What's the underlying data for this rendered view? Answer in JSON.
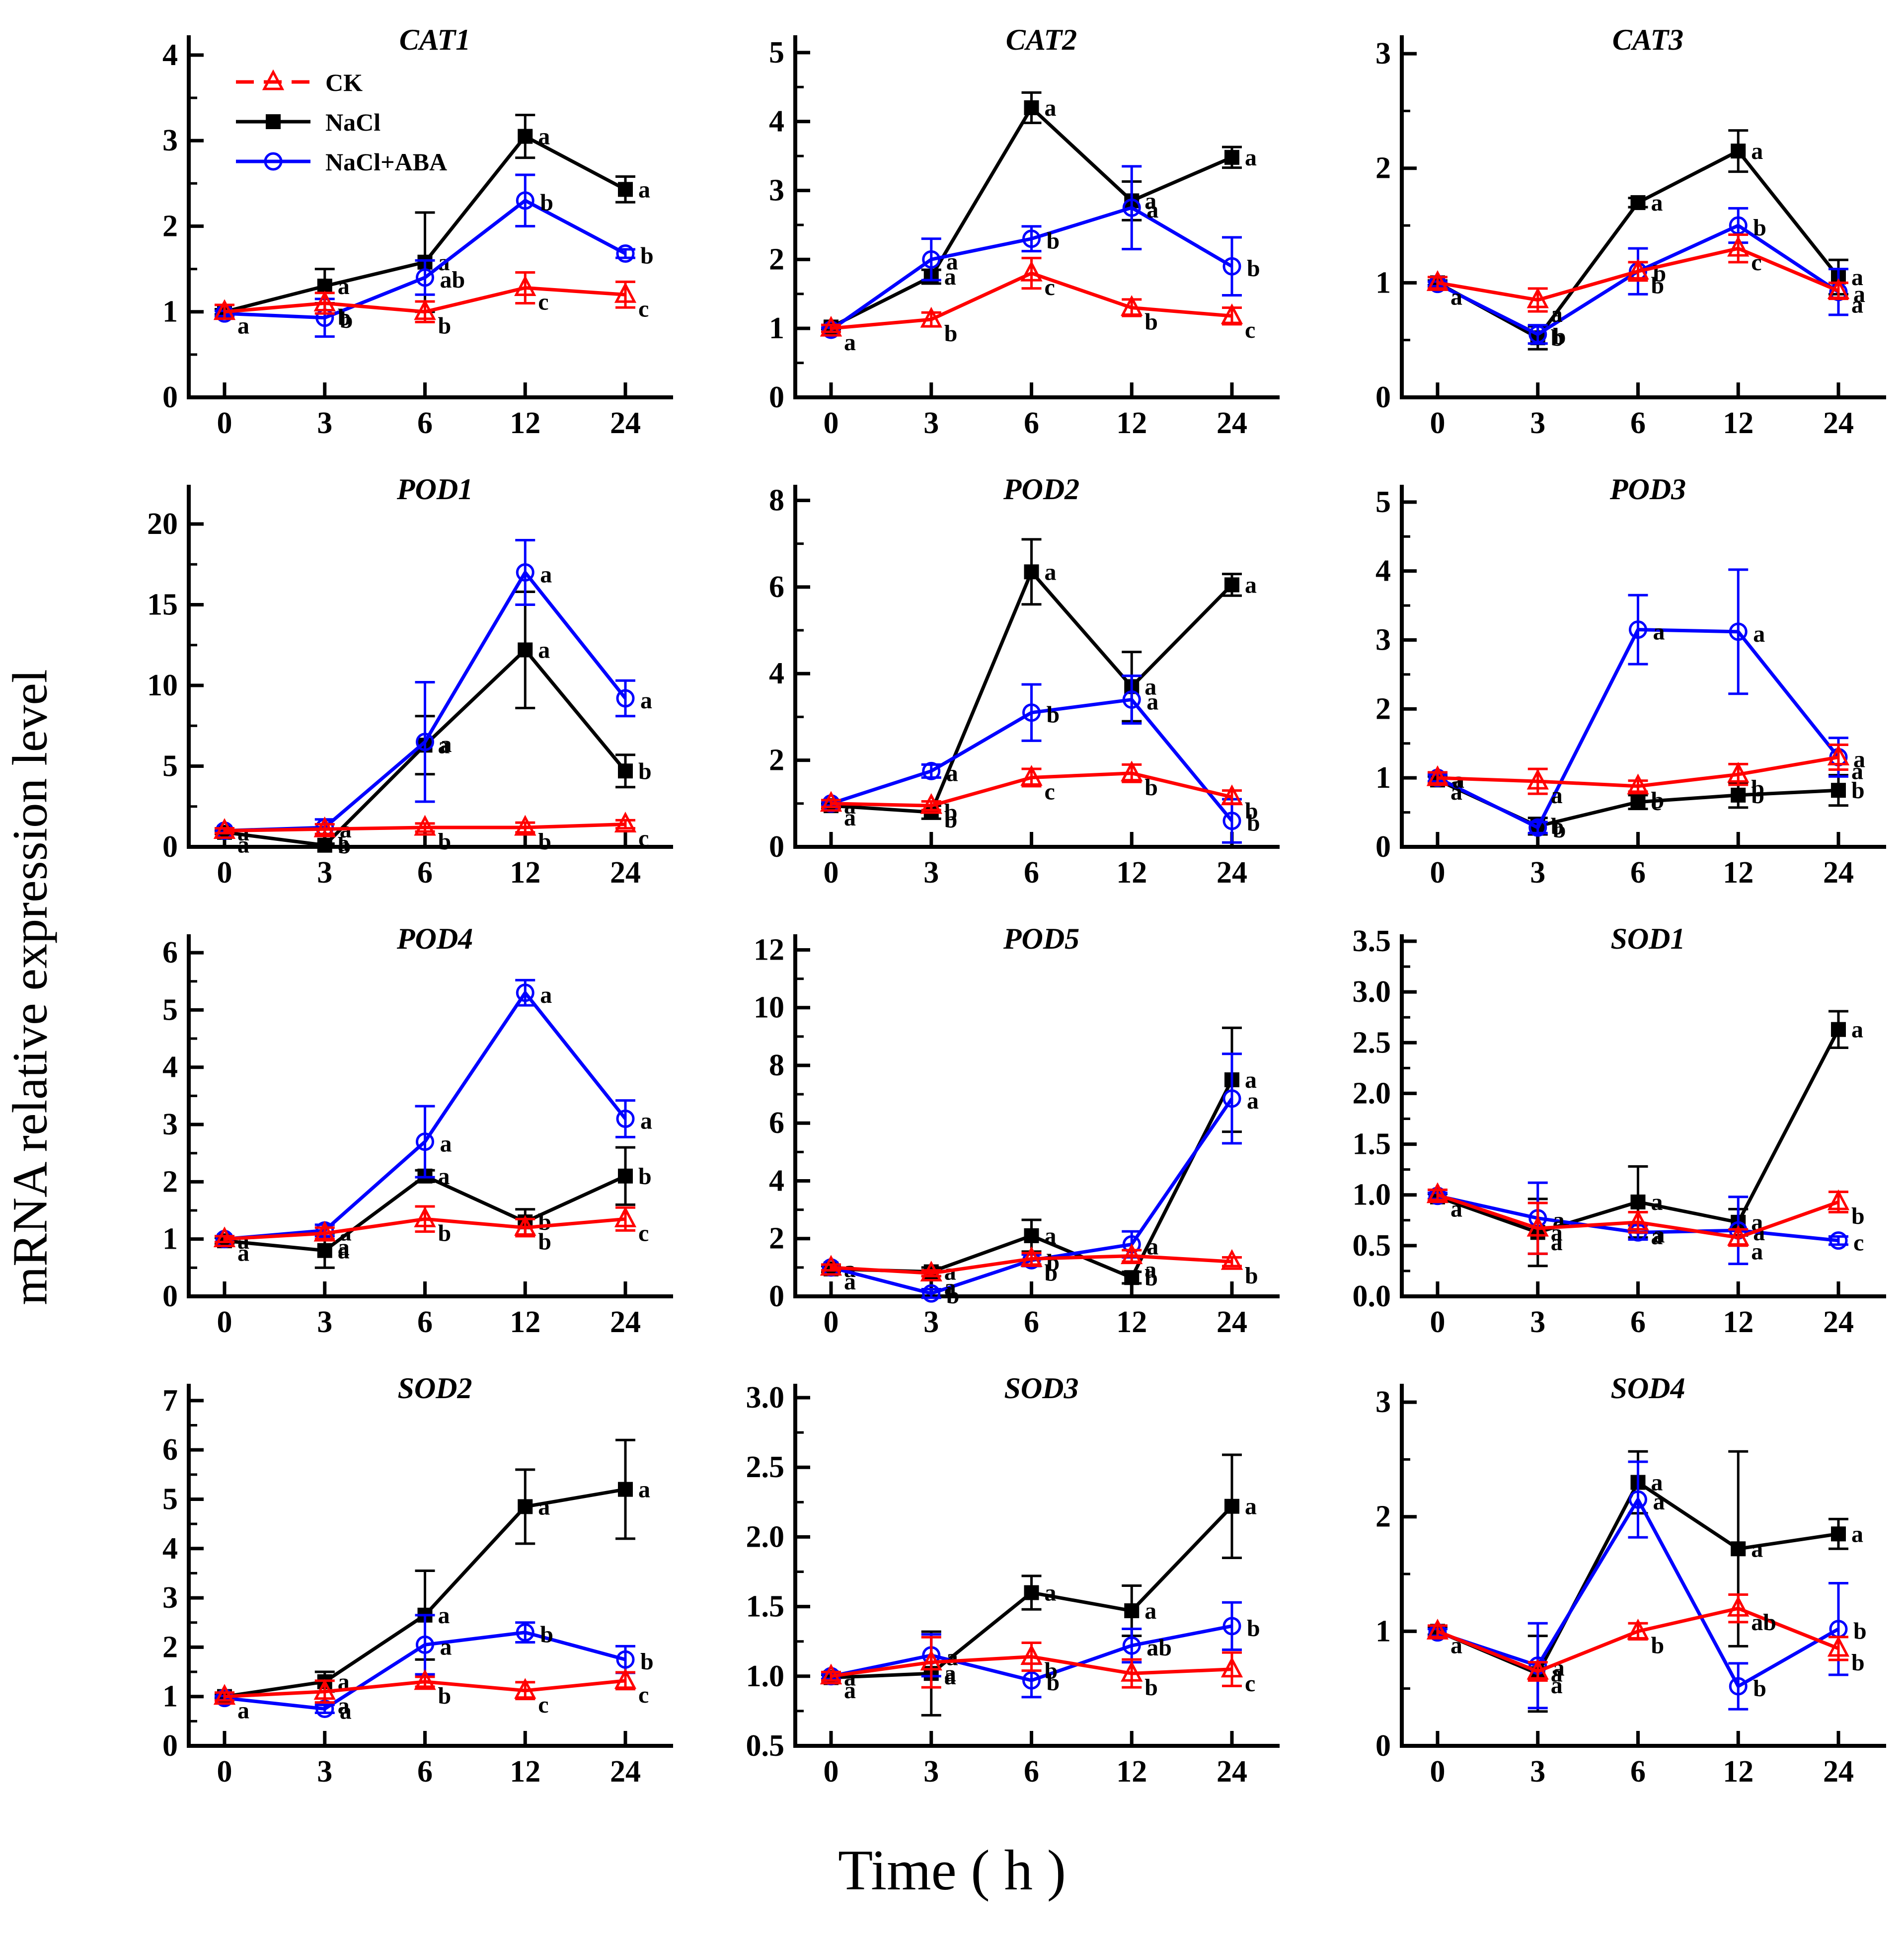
{
  "figure": {
    "y_axis_label": "mRNA relative expression level",
    "x_axis_label": "Time ( h )"
  },
  "colors": {
    "ck": "#FF0000",
    "nacl": "#000000",
    "nacl_aba": "#0000FF",
    "letters": "#000000",
    "axis": "#000000"
  },
  "legend": {
    "position": "top-left-of-first-panel",
    "items": [
      {
        "key": "CK",
        "label": "CK",
        "marker": "open-triangle-icon",
        "line": "dashed",
        "color": "#FF0000"
      },
      {
        "key": "NaCl",
        "label": "NaCl",
        "marker": "filled-square-icon",
        "line": "solid",
        "color": "#000000"
      },
      {
        "key": "NaCl+ABA",
        "label": "NaCl+ABA",
        "marker": "open-circle-icon",
        "line": "solid",
        "color": "#0000FF"
      }
    ]
  },
  "chart_data": [
    {
      "type": "line",
      "title": "CAT1",
      "x": [
        0,
        3,
        6,
        12,
        24
      ],
      "xlabel": "",
      "ylabel": "",
      "ylim": [
        0,
        4.15
      ],
      "yticks": [
        0,
        1,
        2,
        3,
        4
      ],
      "decimals": 0,
      "legend": true,
      "series": [
        {
          "name": "CK",
          "values": [
            1.0,
            1.1,
            1.0,
            1.28,
            1.2
          ],
          "errors": [
            0.08,
            0.12,
            0.12,
            0.18,
            0.15
          ],
          "letters": [
            "a",
            "b",
            "b",
            "c",
            "c"
          ]
        },
        {
          "name": "NaCl",
          "values": [
            1.0,
            1.3,
            1.58,
            3.05,
            2.43
          ],
          "errors": [
            0.03,
            0.2,
            0.58,
            0.25,
            0.15
          ],
          "letters": [
            "",
            "a",
            "a",
            "a",
            "a"
          ]
        },
        {
          "name": "NaCl+ABA",
          "values": [
            0.98,
            0.93,
            1.4,
            2.3,
            1.68
          ],
          "errors": [
            0.03,
            0.22,
            0.2,
            0.3,
            0.05
          ],
          "letters": [
            "",
            "b",
            "ab",
            "b",
            "b"
          ]
        }
      ]
    },
    {
      "type": "line",
      "title": "CAT2",
      "x": [
        0,
        3,
        6,
        12,
        24
      ],
      "ylim": [
        0,
        5.15
      ],
      "yticks": [
        0,
        1,
        2,
        3,
        4,
        5
      ],
      "decimals": 0,
      "legend": false,
      "series": [
        {
          "name": "CK",
          "values": [
            1.0,
            1.13,
            1.8,
            1.3,
            1.18
          ],
          "errors": [
            0.05,
            0.1,
            0.22,
            0.12,
            0.12
          ],
          "letters": [
            "a",
            "b",
            "c",
            "b",
            "c"
          ]
        },
        {
          "name": "NaCl",
          "values": [
            1.02,
            1.75,
            4.2,
            2.85,
            3.48
          ],
          "errors": [
            0.03,
            0.1,
            0.22,
            0.28,
            0.15
          ],
          "letters": [
            "",
            "a",
            "a",
            "a",
            "a"
          ]
        },
        {
          "name": "NaCl+ABA",
          "values": [
            0.98,
            2.0,
            2.3,
            2.75,
            1.9
          ],
          "errors": [
            0.03,
            0.3,
            0.18,
            0.6,
            0.42
          ],
          "letters": [
            "",
            "a",
            "b",
            "a",
            "b"
          ]
        }
      ]
    },
    {
      "type": "line",
      "title": "CAT3",
      "x": [
        0,
        3,
        6,
        12,
        24
      ],
      "ylim": [
        0,
        3.1
      ],
      "yticks": [
        0,
        1,
        2,
        3
      ],
      "decimals": 0,
      "legend": false,
      "series": [
        {
          "name": "CK",
          "values": [
            1.0,
            0.85,
            1.1,
            1.3,
            0.93
          ],
          "errors": [
            0.05,
            0.1,
            0.08,
            0.12,
            0.07
          ],
          "letters": [
            "a",
            "a",
            "b",
            "c",
            "a"
          ]
        },
        {
          "name": "NaCl",
          "values": [
            1.0,
            0.52,
            1.7,
            2.15,
            1.05
          ],
          "errors": [
            0.02,
            0.1,
            0.04,
            0.18,
            0.15
          ],
          "letters": [
            "",
            "b",
            "a",
            "a",
            "a"
          ]
        },
        {
          "name": "NaCl+ABA",
          "values": [
            0.99,
            0.55,
            1.1,
            1.5,
            0.92
          ],
          "errors": [
            0.02,
            0.08,
            0.2,
            0.15,
            0.2
          ],
          "letters": [
            "",
            "b",
            "b",
            "b",
            "a"
          ]
        }
      ]
    },
    {
      "type": "line",
      "title": "POD1",
      "x": [
        0,
        3,
        6,
        12,
        24
      ],
      "ylim": [
        0,
        22
      ],
      "yticks": [
        0,
        5,
        10,
        15,
        20
      ],
      "decimals": 0,
      "legend": false,
      "series": [
        {
          "name": "CK",
          "values": [
            1.0,
            1.1,
            1.2,
            1.2,
            1.4
          ],
          "errors": [
            0.15,
            0.3,
            0.25,
            0.3,
            0.25
          ],
          "letters": [
            "a",
            "a",
            "b",
            "b",
            "c"
          ]
        },
        {
          "name": "NaCl",
          "values": [
            0.9,
            0.1,
            6.3,
            12.2,
            4.7
          ],
          "errors": [
            0.1,
            0.1,
            1.8,
            3.6,
            1.0
          ],
          "letters": [
            "a",
            "b",
            "a",
            "a",
            "b"
          ]
        },
        {
          "name": "NaCl+ABA",
          "values": [
            1.0,
            1.2,
            6.5,
            17.0,
            9.2
          ],
          "errors": [
            0.1,
            0.5,
            3.7,
            2.0,
            1.1
          ],
          "letters": [
            "",
            "a",
            "a",
            "a",
            "a"
          ]
        }
      ]
    },
    {
      "type": "line",
      "title": "POD2",
      "x": [
        0,
        3,
        6,
        12,
        24
      ],
      "ylim": [
        0,
        8.2
      ],
      "yticks": [
        0,
        2,
        4,
        6,
        8
      ],
      "decimals": 0,
      "legend": false,
      "series": [
        {
          "name": "CK",
          "values": [
            1.0,
            0.95,
            1.6,
            1.7,
            1.15
          ],
          "errors": [
            0.08,
            0.1,
            0.2,
            0.2,
            0.15
          ],
          "letters": [
            "a",
            "b",
            "c",
            "b",
            "b"
          ]
        },
        {
          "name": "NaCl",
          "values": [
            0.95,
            0.8,
            6.35,
            3.7,
            6.05
          ],
          "errors": [
            0.05,
            0.15,
            0.75,
            0.8,
            0.25
          ],
          "letters": [
            "a",
            "b",
            "a",
            "a",
            "a"
          ]
        },
        {
          "name": "NaCl+ABA",
          "values": [
            1.0,
            1.75,
            3.1,
            3.4,
            0.6
          ],
          "errors": [
            0.05,
            0.15,
            0.65,
            0.55,
            0.5
          ],
          "letters": [
            "",
            "a",
            "b",
            "a",
            "b"
          ]
        }
      ]
    },
    {
      "type": "line",
      "title": "POD3",
      "x": [
        0,
        3,
        6,
        12,
        24
      ],
      "ylim": [
        0,
        5.15
      ],
      "yticks": [
        0,
        1,
        2,
        3,
        4,
        5
      ],
      "decimals": 0,
      "legend": false,
      "series": [
        {
          "name": "CK",
          "values": [
            1.0,
            0.95,
            0.88,
            1.05,
            1.3
          ],
          "errors": [
            0.08,
            0.18,
            0.08,
            0.15,
            0.18
          ],
          "letters": [
            "a",
            "a",
            "b",
            "b",
            "a"
          ]
        },
        {
          "name": "NaCl",
          "values": [
            0.97,
            0.3,
            0.65,
            0.75,
            0.82
          ],
          "errors": [
            0.05,
            0.12,
            0.1,
            0.18,
            0.22
          ],
          "letters": [
            "a",
            "b",
            "c",
            "b",
            "b"
          ]
        },
        {
          "name": "NaCl+ABA",
          "values": [
            1.0,
            0.28,
            3.15,
            3.12,
            1.3
          ],
          "errors": [
            0.05,
            0.08,
            0.5,
            0.9,
            0.28
          ],
          "letters": [
            "a",
            "b",
            "a",
            "a",
            "a"
          ]
        }
      ]
    },
    {
      "type": "line",
      "title": "POD4",
      "x": [
        0,
        3,
        6,
        12,
        24
      ],
      "ylim": [
        0,
        6.2
      ],
      "yticks": [
        0,
        1,
        2,
        3,
        4,
        5,
        6
      ],
      "decimals": 0,
      "legend": false,
      "series": [
        {
          "name": "CK",
          "values": [
            1.0,
            1.1,
            1.35,
            1.2,
            1.35
          ],
          "errors": [
            0.05,
            0.1,
            0.22,
            0.15,
            0.2
          ],
          "letters": [
            "a",
            "a",
            "b",
            "b",
            "c"
          ]
        },
        {
          "name": "NaCl",
          "values": [
            0.97,
            0.8,
            2.1,
            1.3,
            2.1
          ],
          "errors": [
            0.05,
            0.3,
            0.1,
            0.22,
            0.5
          ],
          "letters": [
            "a",
            "a",
            "a",
            "b",
            "b"
          ]
        },
        {
          "name": "NaCl+ABA",
          "values": [
            1.0,
            1.15,
            2.7,
            5.3,
            3.1
          ],
          "errors": [
            0.05,
            0.1,
            0.62,
            0.22,
            0.32
          ],
          "letters": [
            "",
            "a",
            "a",
            "a",
            "a"
          ]
        }
      ]
    },
    {
      "type": "line",
      "title": "POD5",
      "x": [
        0,
        3,
        6,
        12,
        24
      ],
      "ylim": [
        0,
        12.3
      ],
      "yticks": [
        0,
        2,
        4,
        6,
        8,
        10,
        12
      ],
      "decimals": 0,
      "legend": false,
      "series": [
        {
          "name": "CK",
          "values": [
            1.0,
            0.8,
            1.3,
            1.4,
            1.2
          ],
          "errors": [
            0.1,
            0.1,
            0.2,
            0.2,
            0.15
          ],
          "letters": [
            "a",
            "a",
            "b",
            "a",
            "b"
          ]
        },
        {
          "name": "NaCl",
          "values": [
            0.95,
            0.85,
            2.1,
            0.65,
            7.5
          ],
          "errors": [
            0.1,
            0.15,
            0.55,
            0.2,
            1.8
          ],
          "letters": [
            "a",
            "a",
            "a",
            "b",
            "a"
          ]
        },
        {
          "name": "NaCl+ABA",
          "values": [
            1.0,
            0.1,
            1.25,
            1.8,
            6.85
          ],
          "errors": [
            0.1,
            0.15,
            0.2,
            0.45,
            1.55
          ],
          "letters": [
            "",
            "b",
            "b",
            "a",
            "a"
          ]
        }
      ]
    },
    {
      "type": "line",
      "title": "SOD1",
      "x": [
        0,
        3,
        6,
        12,
        24
      ],
      "ylim": [
        0,
        3.5
      ],
      "yticks": [
        0,
        0.5,
        1,
        1.5,
        2,
        2.5,
        3,
        3.5
      ],
      "decimals": 1,
      "legend": false,
      "series": [
        {
          "name": "CK",
          "values": [
            1.0,
            0.67,
            0.73,
            0.58,
            0.93
          ],
          "errors": [
            0.05,
            0.25,
            0.1,
            0.08,
            0.1
          ],
          "letters": [
            "a",
            "a",
            "a",
            "a",
            "b"
          ]
        },
        {
          "name": "NaCl",
          "values": [
            0.98,
            0.63,
            0.93,
            0.73,
            2.63
          ],
          "errors": [
            0.03,
            0.33,
            0.35,
            0.13,
            0.18
          ],
          "letters": [
            "",
            "a",
            "a",
            "a",
            "a"
          ]
        },
        {
          "name": "NaCl+ABA",
          "values": [
            0.99,
            0.77,
            0.63,
            0.65,
            0.55
          ],
          "errors": [
            0.03,
            0.35,
            0.07,
            0.33,
            0.04
          ],
          "letters": [
            "",
            "a",
            "a",
            "a",
            "c"
          ]
        }
      ]
    },
    {
      "type": "line",
      "title": "SOD2",
      "x": [
        0,
        3,
        6,
        12,
        24
      ],
      "ylim": [
        0,
        7.2
      ],
      "yticks": [
        0,
        1,
        2,
        3,
        4,
        5,
        6,
        7
      ],
      "decimals": 0,
      "legend": false,
      "series": [
        {
          "name": "CK",
          "values": [
            1.0,
            1.1,
            1.3,
            1.12,
            1.32
          ],
          "errors": [
            0.08,
            0.22,
            0.1,
            0.17,
            0.17
          ],
          "letters": [
            "a",
            "a",
            "b",
            "c",
            "c"
          ]
        },
        {
          "name": "NaCl",
          "values": [
            1.0,
            1.3,
            2.65,
            4.85,
            5.2
          ],
          "errors": [
            0.04,
            0.2,
            0.9,
            0.75,
            1.0
          ],
          "letters": [
            "",
            "a",
            "a",
            "a",
            "a"
          ]
        },
        {
          "name": "NaCl+ABA",
          "values": [
            0.97,
            0.75,
            2.05,
            2.3,
            1.75
          ],
          "errors": [
            0.04,
            0.08,
            0.6,
            0.2,
            0.27
          ],
          "letters": [
            "",
            "a",
            "a",
            "b",
            "b"
          ]
        }
      ]
    },
    {
      "type": "line",
      "title": "SOD3",
      "x": [
        0,
        3,
        6,
        12,
        24
      ],
      "ylim": [
        0.5,
        3.05
      ],
      "yticks": [
        0.5,
        1,
        1.5,
        2,
        2.5,
        3
      ],
      "decimals": 1,
      "legend": false,
      "series": [
        {
          "name": "CK",
          "values": [
            1.0,
            1.1,
            1.14,
            1.02,
            1.05
          ],
          "errors": [
            0.03,
            0.18,
            0.1,
            0.1,
            0.12
          ],
          "letters": [
            "a",
            "a",
            "b",
            "b",
            "c"
          ]
        },
        {
          "name": "NaCl",
          "values": [
            0.99,
            1.02,
            1.6,
            1.47,
            2.22
          ],
          "errors": [
            0.02,
            0.3,
            0.12,
            0.18,
            0.37
          ],
          "letters": [
            "a",
            "a",
            "a",
            "a",
            "a"
          ]
        },
        {
          "name": "NaCl+ABA",
          "values": [
            1.0,
            1.15,
            0.97,
            1.22,
            1.36
          ],
          "errors": [
            0.02,
            0.15,
            0.12,
            0.12,
            0.17
          ],
          "letters": [
            "",
            "a",
            "b",
            "ab",
            "b"
          ]
        }
      ]
    },
    {
      "type": "line",
      "title": "SOD4",
      "x": [
        0,
        3,
        6,
        12,
        24
      ],
      "ylim": [
        0,
        3.1
      ],
      "yticks": [
        0,
        1,
        2,
        3
      ],
      "decimals": 0,
      "legend": false,
      "series": [
        {
          "name": "CK",
          "values": [
            1.0,
            0.65,
            1.0,
            1.2,
            0.85
          ],
          "errors": [
            0.05,
            0.08,
            0.07,
            0.12,
            0.1
          ],
          "letters": [
            "a",
            "a",
            "b",
            "ab",
            "b"
          ]
        },
        {
          "name": "NaCl",
          "values": [
            1.0,
            0.63,
            2.3,
            1.72,
            1.85
          ],
          "errors": [
            0.03,
            0.33,
            0.27,
            0.85,
            0.13
          ],
          "letters": [
            "",
            "a",
            "a",
            "a",
            "a"
          ]
        },
        {
          "name": "NaCl+ABA",
          "values": [
            0.99,
            0.7,
            2.15,
            0.52,
            1.02
          ],
          "errors": [
            0.03,
            0.37,
            0.33,
            0.2,
            0.4
          ],
          "letters": [
            "",
            "a",
            "a",
            "b",
            "b"
          ]
        }
      ]
    }
  ]
}
